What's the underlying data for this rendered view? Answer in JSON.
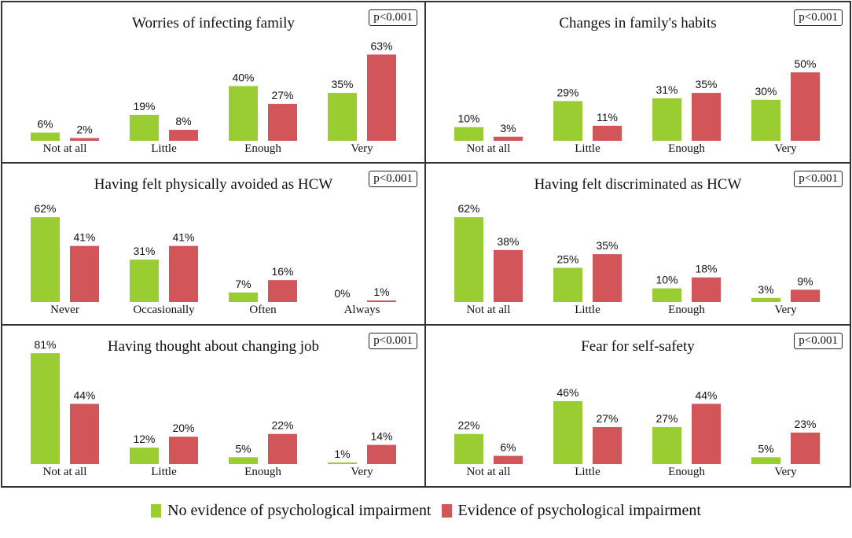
{
  "colors": {
    "no_impairment": "#9acd32",
    "impairment": "#d2555a"
  },
  "legend": {
    "no_impairment": "No evidence of psychological impairment",
    "impairment": "Evidence of psychological impairment"
  },
  "chart_data": [
    {
      "type": "bar",
      "title": "Worries of infecting family",
      "p_value": "p<0.001",
      "categories": [
        "Not at all",
        "Little",
        "Enough",
        "Very"
      ],
      "series": [
        {
          "name": "No evidence of psychological impairment",
          "values": [
            6,
            19,
            40,
            35
          ],
          "labels": [
            "6%",
            "19%",
            "40%",
            "35%"
          ]
        },
        {
          "name": "Evidence of psychological impairment",
          "values": [
            2,
            8,
            27,
            63
          ],
          "labels": [
            "2%",
            "8%",
            "27%",
            "63%"
          ]
        }
      ],
      "ylim": [
        0,
        100
      ]
    },
    {
      "type": "bar",
      "title": "Changes in family's habits",
      "p_value": "p<0.001",
      "categories": [
        "Not at all",
        "Little",
        "Enough",
        "Very"
      ],
      "series": [
        {
          "name": "No evidence of psychological impairment",
          "values": [
            10,
            29,
            31,
            30
          ],
          "labels": [
            "10%",
            "29%",
            "31%",
            "30%"
          ]
        },
        {
          "name": "Evidence of psychological impairment",
          "values": [
            3,
            11,
            35,
            50
          ],
          "labels": [
            "3%",
            "11%",
            "35%",
            "50%"
          ]
        }
      ],
      "ylim": [
        0,
        100
      ]
    },
    {
      "type": "bar",
      "title": "Having felt physically avoided as HCW",
      "p_value": "p<0.001",
      "categories": [
        "Never",
        "Occasionally",
        "Often",
        "Always"
      ],
      "series": [
        {
          "name": "No evidence of psychological impairment",
          "values": [
            62,
            31,
            7,
            0
          ],
          "labels": [
            "62%",
            "31%",
            "7%",
            "0%"
          ]
        },
        {
          "name": "Evidence of psychological impairment",
          "values": [
            41,
            41,
            16,
            1
          ],
          "labels": [
            "41%",
            "41%",
            "16%",
            "1%"
          ]
        }
      ],
      "ylim": [
        0,
        100
      ]
    },
    {
      "type": "bar",
      "title": "Having felt discriminated as HCW",
      "p_value": "p<0.001",
      "categories": [
        "Not at all",
        "Little",
        "Enough",
        "Very"
      ],
      "series": [
        {
          "name": "No evidence of psychological impairment",
          "values": [
            62,
            25,
            10,
            3
          ],
          "labels": [
            "62%",
            "25%",
            "10%",
            "3%"
          ]
        },
        {
          "name": "Evidence of psychological impairment",
          "values": [
            38,
            35,
            18,
            9
          ],
          "labels": [
            "38%",
            "35%",
            "18%",
            "9%"
          ]
        }
      ],
      "ylim": [
        0,
        100
      ]
    },
    {
      "type": "bar",
      "title": "Having thought about changing job",
      "p_value": "p<0.001",
      "categories": [
        "Not at all",
        "Little",
        "Enough",
        "Very"
      ],
      "series": [
        {
          "name": "No evidence of psychological impairment",
          "values": [
            81,
            12,
            5,
            1
          ],
          "labels": [
            "81%",
            "12%",
            "5%",
            "1%"
          ]
        },
        {
          "name": "Evidence of psychological impairment",
          "values": [
            44,
            20,
            22,
            14
          ],
          "labels": [
            "44%",
            "20%",
            "22%",
            "14%"
          ]
        }
      ],
      "ylim": [
        0,
        100
      ]
    },
    {
      "type": "bar",
      "title": "Fear for self-safety",
      "p_value": "p<0.001",
      "categories": [
        "Not at all",
        "Little",
        "Enough",
        "Very"
      ],
      "series": [
        {
          "name": "No evidence of psychological impairment",
          "values": [
            22,
            46,
            27,
            5
          ],
          "labels": [
            "22%",
            "46%",
            "27%",
            "5%"
          ]
        },
        {
          "name": "Evidence of psychological impairment",
          "values": [
            6,
            27,
            44,
            23
          ],
          "labels": [
            "6%",
            "27%",
            "44%",
            "23%"
          ]
        }
      ],
      "ylim": [
        0,
        100
      ]
    }
  ]
}
